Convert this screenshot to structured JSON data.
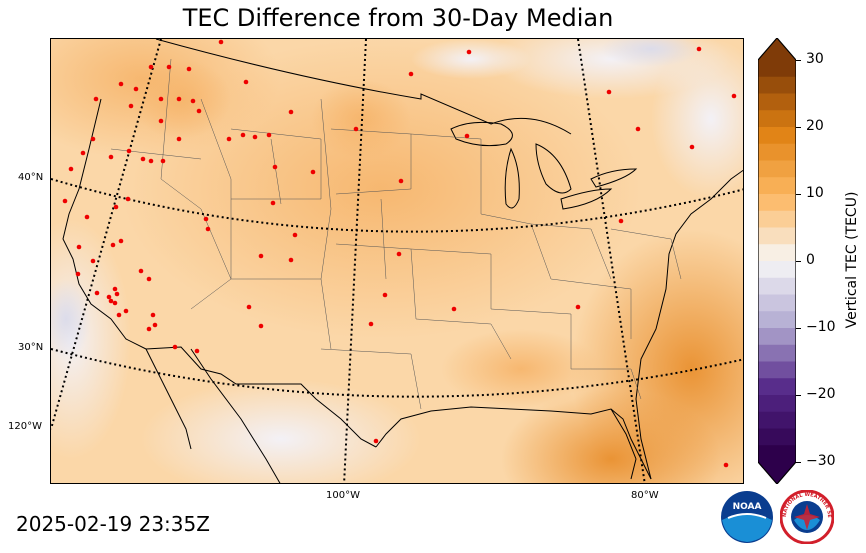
{
  "title": "TEC Difference from 30-Day Median",
  "timestamp": "2025-02-19 23:35Z",
  "map": {
    "lat_labels": [
      "40°N",
      "30°N",
      "120°W"
    ],
    "lon_labels": [
      "100°W",
      "80°W"
    ]
  },
  "colorbar": {
    "label": "Vertical TEC (TECU)",
    "ticks": [
      "30",
      "20",
      "10",
      "0",
      "−10",
      "−20",
      "−30"
    ],
    "range": [
      -30,
      30
    ],
    "colors": {
      "max": "#7f3b08",
      "high": "#e08214",
      "mid_high": "#fdb863",
      "zero": "#f7f7f7",
      "mid_low": "#b2abd2",
      "low": "#542788",
      "min": "#2d004b"
    }
  },
  "logos": {
    "noaa": "NOAA",
    "nws": "NATIONAL WEATHER SERVICE"
  }
}
